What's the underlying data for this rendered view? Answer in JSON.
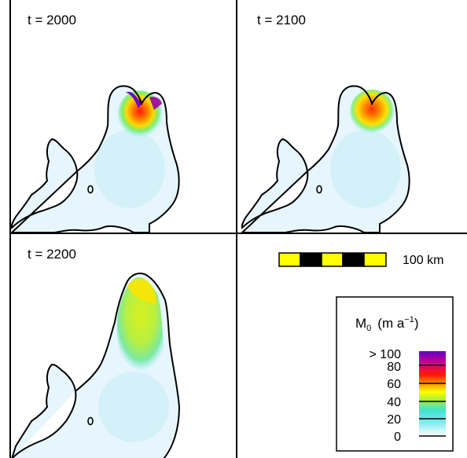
{
  "panels": [
    {
      "time_label": "t = 2000",
      "hotspot": "high"
    },
    {
      "time_label": "t = 2100",
      "hotspot": "medium"
    },
    {
      "time_label": "t = 2200",
      "hotspot": "low"
    }
  ],
  "scale_bar": {
    "label": "100 km",
    "segments": 5,
    "colors": [
      "#ffff00",
      "#000000"
    ]
  },
  "legend": {
    "title_symbol": "M",
    "title_subscript": "0",
    "title_units_open": "(m a",
    "title_units_exp": "−1",
    "title_units_close": ")",
    "tick_labels": [
      "> 100",
      "80",
      "60",
      "40",
      "20",
      "0"
    ],
    "colormap": [
      "#ffffff",
      "#8de8f0",
      "#3ce4d0",
      "#b4f030",
      "#ffff00",
      "#ff9000",
      "#ff1800",
      "#d0008c",
      "#6000c8"
    ]
  },
  "colors": {
    "outline": "#000000",
    "grid": "#000000",
    "ice_base": "#e6f6fc"
  }
}
